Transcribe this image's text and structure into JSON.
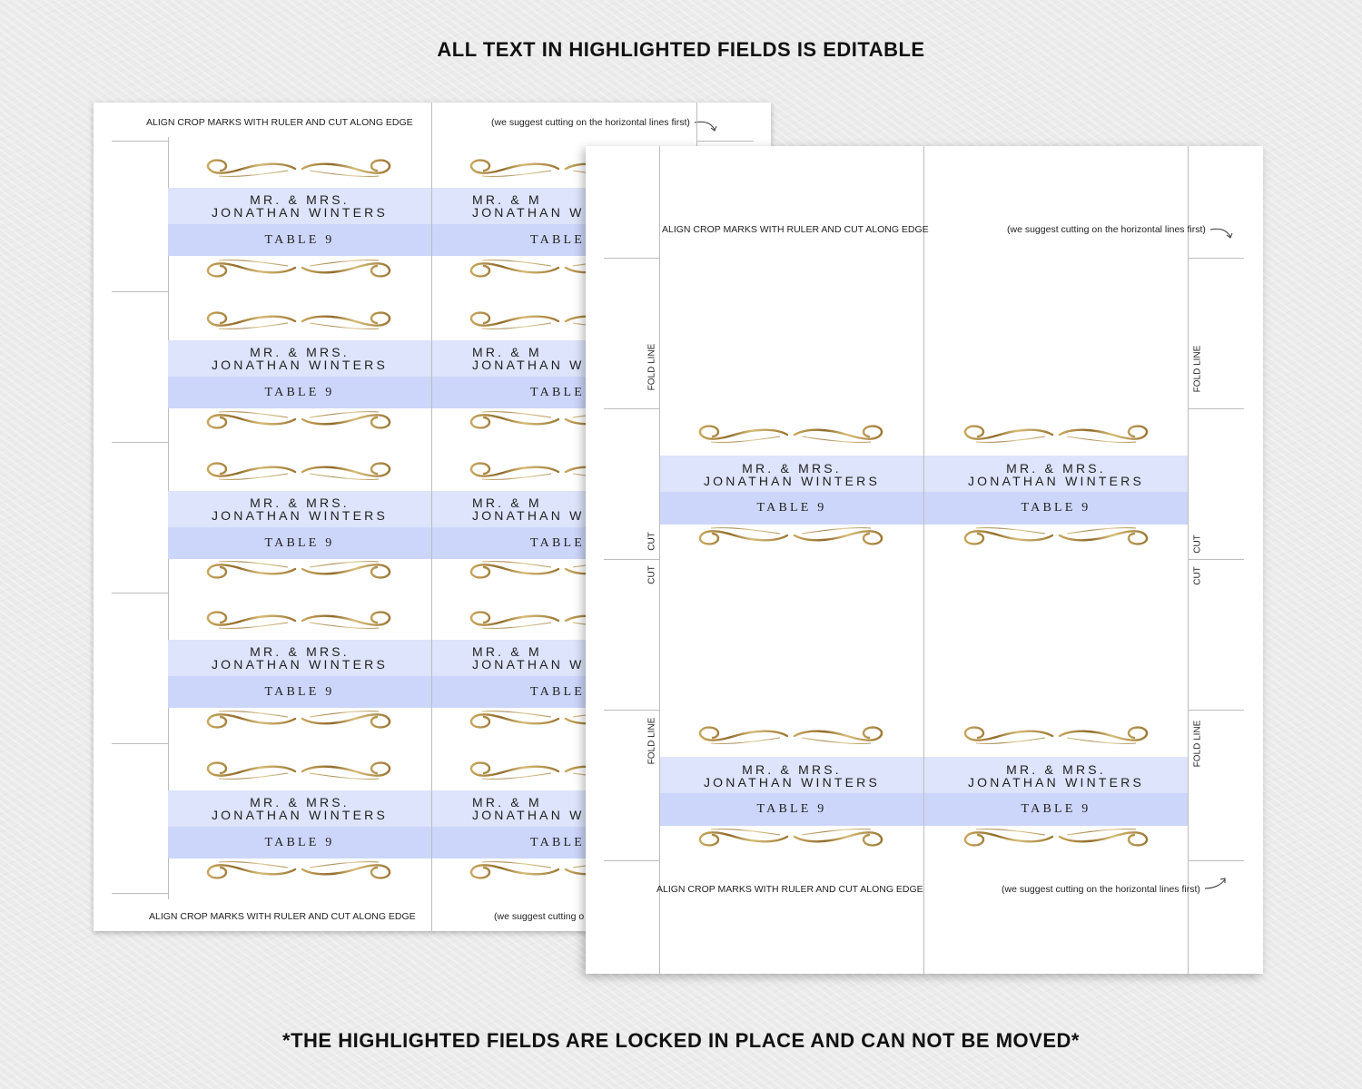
{
  "headings": {
    "top": "ALL TEXT IN HIGHLIGHTED FIELDS IS EDITABLE",
    "bottom": "*THE HIGHLIGHTED FIELDS ARE LOCKED IN PLACE AND CAN NOT BE MOVED*"
  },
  "instructions": {
    "align": "ALIGN CROP MARKS WITH RULER AND CUT ALONG EDGE",
    "suggest": "(we suggest cutting on the horizontal lines first)",
    "suggest_cropped": "(we suggest cutting o"
  },
  "card": {
    "line1": "MR. & MRS.",
    "line2": "JONATHAN WINTERS",
    "table": "TABLE 9",
    "line1_cropped": "MR. & M",
    "line2_cropped": "JONATHAN W",
    "table_cropped": "TABLE"
  },
  "labels": {
    "fold": "FOLD LINE",
    "cut": "CUT"
  },
  "colors": {
    "band_light": "#dde4fb",
    "band_dark": "#ccd6fa",
    "gold": "#b8924a"
  }
}
